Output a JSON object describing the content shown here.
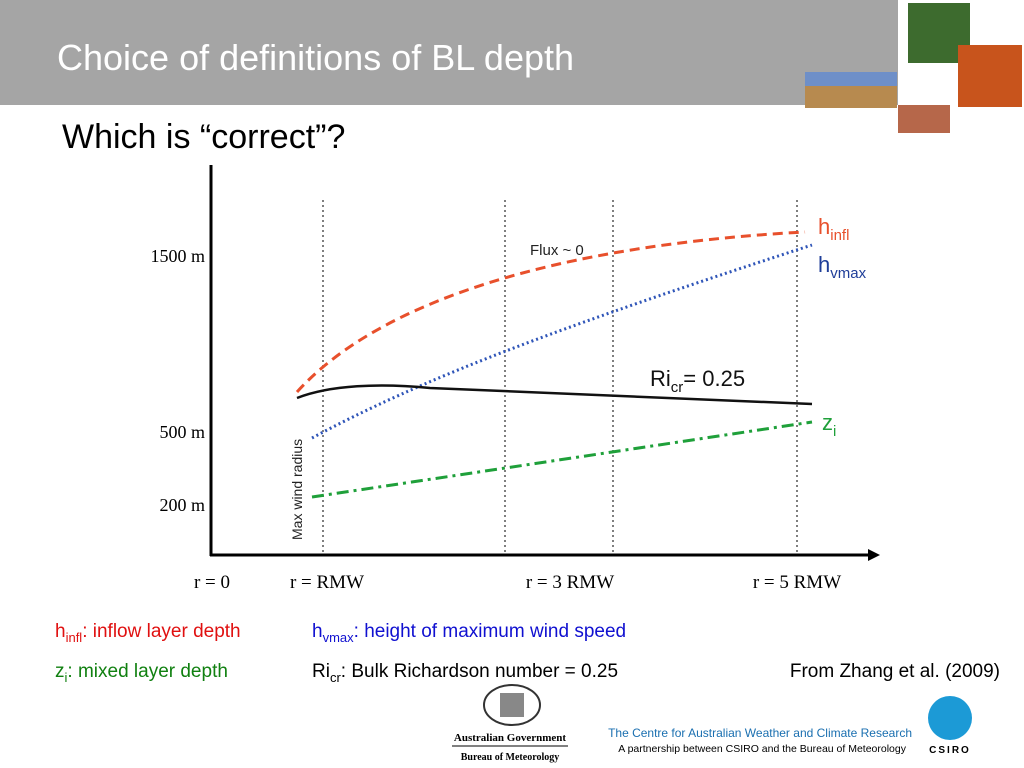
{
  "header": {
    "title": "Choice of definitions of BL depth"
  },
  "subtitle": "Which is “correct”?",
  "figure": {
    "y_labels": [
      "1500 m",
      "500 m",
      "200 m"
    ],
    "x_labels": [
      "r = 0",
      "r = RMW",
      "r = 3 RMW",
      "r = 5 RMW"
    ],
    "annotations": {
      "flux": "Flux ~ 0",
      "max_wind": "Max wind radius"
    },
    "curves": [
      {
        "base": "h",
        "sub": "infl"
      },
      {
        "base": "h",
        "sub": "vmax"
      },
      {
        "base": "Ri",
        "sub": "cr",
        "suffix": "= 0.25"
      },
      {
        "base": "z",
        "sub": "i"
      }
    ]
  },
  "legend": [
    {
      "base": "h",
      "sub": "infl",
      "text": ": inflow layer depth"
    },
    {
      "base": "h",
      "sub": "vmax",
      "text": ": height of maximum wind speed"
    },
    {
      "base": "z",
      "sub": "i",
      "text": ": mixed layer depth"
    },
    {
      "base": "Ri",
      "sub": "cr",
      "text": ": Bulk Richardson number = 0.25"
    }
  ],
  "source": "From Zhang et al. (2009)",
  "footer": {
    "gov": "Australian Government",
    "bureau": "Bureau of Meteorology",
    "centre": "The Centre for Australian Weather and Climate Research",
    "partnership": "A partnership between CSIRO and the Bureau of Meteorology",
    "csiro": "CSIRO"
  }
}
